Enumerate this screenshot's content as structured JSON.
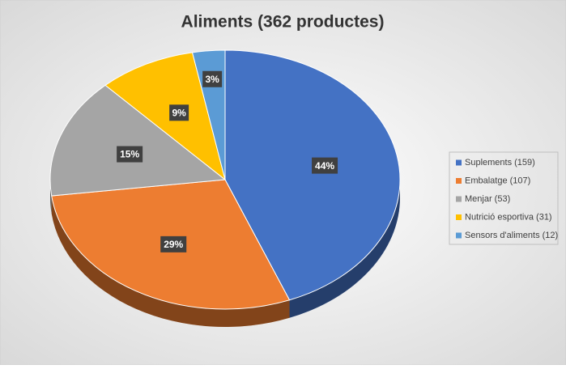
{
  "chart_data": {
    "type": "pie",
    "title": "Aliments (362 productes)",
    "categories": [
      "Suplements (159)",
      "Embalatge (107)",
      "Menjar (53)",
      "Nutrició esportiva (31)",
      "Sensors d'aliments (12)"
    ],
    "values": [
      44,
      29,
      15,
      9,
      3
    ],
    "value_labels": [
      "44%",
      "29%",
      "15%",
      "9%",
      "3%"
    ],
    "colors": [
      "#4472c4",
      "#ed7d31",
      "#a5a5a5",
      "#ffc000",
      "#5b9bd5"
    ],
    "legend": "right"
  }
}
